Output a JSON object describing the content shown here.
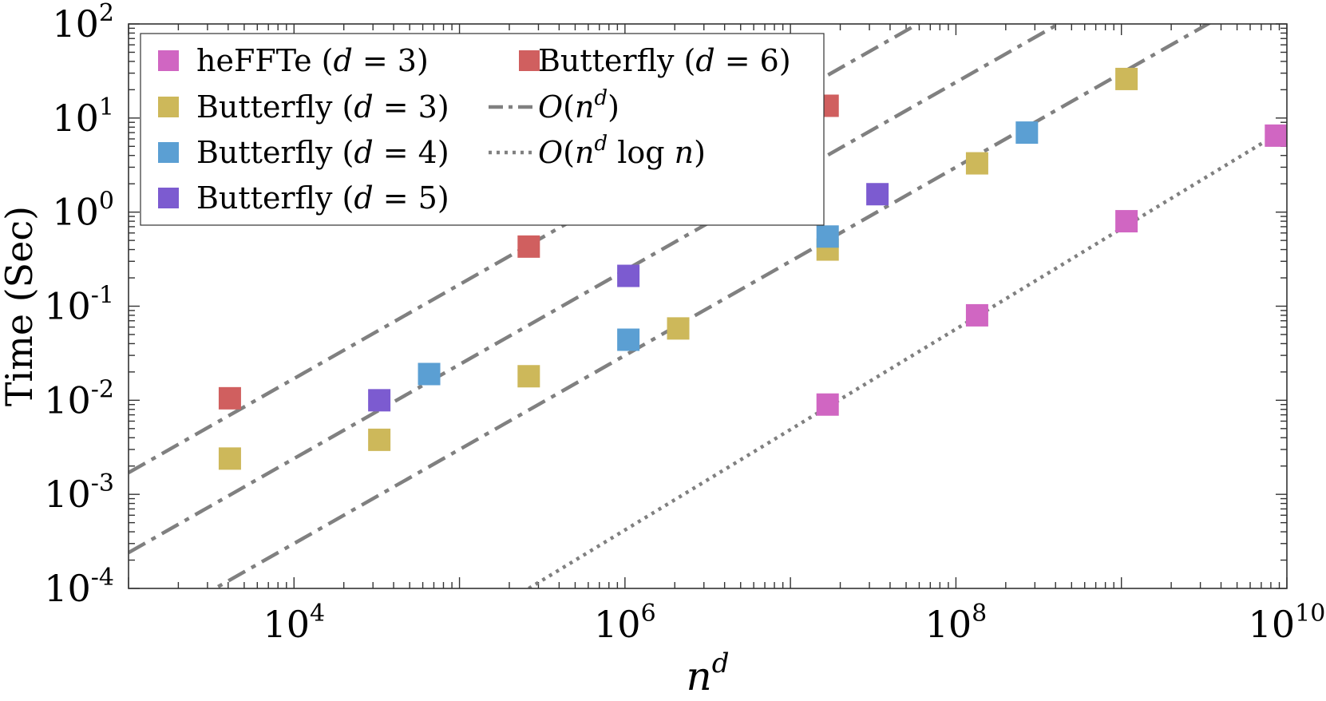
{
  "chart_data": {
    "type": "scatter",
    "title": "",
    "xlabel": "n^d",
    "ylabel": "Time (Sec)",
    "xscale": "log",
    "yscale": "log",
    "xlim": [
      1000,
      10000000000
    ],
    "ylim": [
      0.0001,
      100
    ],
    "x_ticks": [
      {
        "label": "10",
        "exp": "4",
        "value": 10000
      },
      {
        "label": "10",
        "exp": "6",
        "value": 1000000
      },
      {
        "label": "10",
        "exp": "8",
        "value": 100000000
      },
      {
        "label": "10",
        "exp": "10",
        "value": 10000000000
      }
    ],
    "y_ticks": [
      {
        "label": "10",
        "exp": "2",
        "value": 100
      },
      {
        "label": "10",
        "exp": "1",
        "value": 10
      },
      {
        "label": "10",
        "exp": "0",
        "value": 1
      },
      {
        "label": "10",
        "exp": "-1",
        "value": 0.1
      },
      {
        "label": "10",
        "exp": "-2",
        "value": 0.01
      },
      {
        "label": "10",
        "exp": "-3",
        "value": 0.001
      },
      {
        "label": "10",
        "exp": "-4",
        "value": 0.0001
      }
    ],
    "grid": false,
    "legend_position": "top-left",
    "series": [
      {
        "name": "heFFTe (d = 3)",
        "label_main": "heFFTe (",
        "label_var": "d",
        "label_rest": " = 3)",
        "color": "#d066c2",
        "marker": "square",
        "x": [
          16777216,
          134217728,
          1073741824,
          8589934592
        ],
        "y": [
          0.009,
          0.08,
          0.8,
          6.5
        ]
      },
      {
        "name": "Butterfly (d = 3)",
        "label_main": "Butterfly (",
        "label_var": "d",
        "label_rest": " = 3)",
        "color": "#cdb85a",
        "marker": "square",
        "x": [
          4096,
          32768,
          262144,
          2097152,
          16777216,
          134217728,
          1073741824
        ],
        "y": [
          0.0024,
          0.0038,
          0.018,
          0.058,
          0.4,
          3.3,
          26
        ]
      },
      {
        "name": "Butterfly (d = 4)",
        "label_main": "Butterfly (",
        "label_var": "d",
        "label_rest": " = 4)",
        "color": "#5b9fd3",
        "marker": "square",
        "x": [
          65536,
          1048576,
          16777216,
          268435456
        ],
        "y": [
          0.019,
          0.044,
          0.55,
          7.0
        ]
      },
      {
        "name": "Butterfly (d = 5)",
        "label_main": "Butterfly (",
        "label_var": "d",
        "label_rest": " = 5)",
        "color": "#7c5bd0",
        "marker": "square",
        "x": [
          32768,
          1048576,
          33554432
        ],
        "y": [
          0.01,
          0.21,
          1.55
        ]
      },
      {
        "name": "Butterfly (d = 6)",
        "label_main": "Butterfly (",
        "label_var": "d",
        "label_rest": " = 6)",
        "color": "#d05f5f",
        "marker": "square",
        "x": [
          4096,
          262144,
          16777216
        ],
        "y": [
          0.0105,
          0.43,
          13.5
        ]
      }
    ],
    "reference_lines": [
      {
        "name": "O(n^d)",
        "style": "dashdot",
        "color": "#808080",
        "x": [
          1000,
          10000000000
        ],
        "y": [
          0.0017,
          17000
        ]
      },
      {
        "name": "O(n^d)",
        "style": "dashdot",
        "color": "#808080",
        "x": [
          1000,
          10000000000
        ],
        "y": [
          0.00024,
          2400
        ]
      },
      {
        "name": "O(n^d)",
        "style": "dashdot",
        "color": "#808080",
        "x": [
          1000,
          10000000000
        ],
        "y": [
          3e-05,
          300
        ]
      },
      {
        "name": "O(n^d log n)",
        "style": "dotted",
        "color": "#808080",
        "x": [
          262144,
          10000000000
        ],
        "y": [
          0.0001,
          7.8
        ]
      }
    ],
    "legend_refs": [
      {
        "name": "O(n^d)",
        "style": "dashdot"
      },
      {
        "name": "O(n^d log n)",
        "style": "dotted"
      }
    ]
  }
}
